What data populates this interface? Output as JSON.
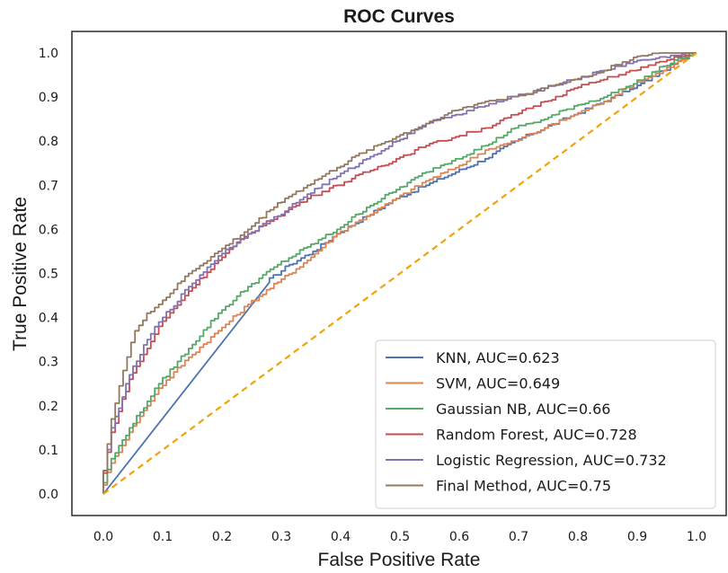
{
  "chart_data": {
    "type": "line",
    "title": "ROC Curves",
    "xlabel": "False Positive Rate",
    "ylabel": "True Positive Rate",
    "xlim": [
      0.0,
      1.0
    ],
    "ylim": [
      0.0,
      1.0
    ],
    "xticks": [
      "0.0",
      "0.1",
      "0.2",
      "0.3",
      "0.4",
      "0.5",
      "0.6",
      "0.7",
      "0.8",
      "0.9",
      "1.0"
    ],
    "yticks": [
      "0.0",
      "0.1",
      "0.2",
      "0.3",
      "0.4",
      "0.5",
      "0.6",
      "0.7",
      "0.8",
      "0.9",
      "1.0"
    ],
    "grid": false,
    "legend_position": "lower-right",
    "series": [
      {
        "name": "KNN, AUC=0.623",
        "color": "#4c72b0",
        "x": [
          0.0,
          0.28,
          0.32,
          0.36,
          0.4,
          0.45,
          0.5,
          0.55,
          0.6,
          0.65,
          0.7,
          0.75,
          0.8,
          0.85,
          0.9,
          0.95,
          1.0
        ],
        "y": [
          0.0,
          0.48,
          0.52,
          0.55,
          0.59,
          0.63,
          0.67,
          0.7,
          0.73,
          0.76,
          0.8,
          0.83,
          0.86,
          0.89,
          0.92,
          0.96,
          1.0
        ]
      },
      {
        "name": "SVM, AUC=0.649",
        "color": "#dd8452",
        "x": [
          0.0,
          0.02,
          0.05,
          0.08,
          0.1,
          0.15,
          0.2,
          0.25,
          0.3,
          0.35,
          0.4,
          0.45,
          0.5,
          0.55,
          0.6,
          0.65,
          0.7,
          0.75,
          0.8,
          0.85,
          0.9,
          0.95,
          1.0
        ],
        "y": [
          0.0,
          0.07,
          0.14,
          0.2,
          0.24,
          0.31,
          0.37,
          0.43,
          0.48,
          0.53,
          0.59,
          0.63,
          0.67,
          0.71,
          0.74,
          0.78,
          0.8,
          0.83,
          0.86,
          0.89,
          0.93,
          0.96,
          1.0
        ]
      },
      {
        "name": "Gaussian NB, AUC=0.66",
        "color": "#55a868",
        "x": [
          0.0,
          0.02,
          0.05,
          0.08,
          0.1,
          0.15,
          0.2,
          0.25,
          0.3,
          0.35,
          0.4,
          0.45,
          0.5,
          0.55,
          0.6,
          0.65,
          0.7,
          0.75,
          0.8,
          0.85,
          0.9,
          0.95,
          1.0
        ],
        "y": [
          0.0,
          0.08,
          0.15,
          0.21,
          0.25,
          0.33,
          0.41,
          0.47,
          0.52,
          0.56,
          0.6,
          0.65,
          0.69,
          0.73,
          0.76,
          0.79,
          0.83,
          0.85,
          0.88,
          0.9,
          0.93,
          0.97,
          1.0
        ]
      },
      {
        "name": "Random Forest, AUC=0.728",
        "color": "#c44e52",
        "x": [
          0.0,
          0.02,
          0.05,
          0.08,
          0.1,
          0.15,
          0.2,
          0.25,
          0.3,
          0.35,
          0.4,
          0.45,
          0.5,
          0.55,
          0.6,
          0.65,
          0.7,
          0.75,
          0.8,
          0.85,
          0.9,
          0.95,
          1.0
        ],
        "y": [
          0.0,
          0.14,
          0.26,
          0.33,
          0.38,
          0.46,
          0.53,
          0.59,
          0.63,
          0.67,
          0.7,
          0.73,
          0.76,
          0.79,
          0.81,
          0.83,
          0.86,
          0.89,
          0.92,
          0.94,
          0.96,
          0.98,
          1.0
        ]
      },
      {
        "name": "Logistic Regression, AUC=0.732",
        "color": "#8172b3",
        "x": [
          0.0,
          0.02,
          0.05,
          0.08,
          0.1,
          0.15,
          0.2,
          0.25,
          0.3,
          0.35,
          0.4,
          0.45,
          0.5,
          0.55,
          0.6,
          0.65,
          0.7,
          0.75,
          0.8,
          0.85,
          0.9,
          0.95,
          1.0
        ],
        "y": [
          0.0,
          0.15,
          0.27,
          0.35,
          0.39,
          0.47,
          0.54,
          0.59,
          0.63,
          0.68,
          0.72,
          0.76,
          0.8,
          0.84,
          0.86,
          0.88,
          0.9,
          0.92,
          0.94,
          0.96,
          0.98,
          0.99,
          1.0
        ]
      },
      {
        "name": "Final Method, AUC=0.75",
        "color": "#937860",
        "x": [
          0.0,
          0.02,
          0.04,
          0.06,
          0.08,
          0.1,
          0.15,
          0.2,
          0.25,
          0.3,
          0.35,
          0.4,
          0.45,
          0.5,
          0.55,
          0.6,
          0.65,
          0.7,
          0.75,
          0.8,
          0.85,
          0.9,
          0.95,
          1.0
        ],
        "y": [
          0.0,
          0.17,
          0.28,
          0.37,
          0.41,
          0.43,
          0.5,
          0.55,
          0.6,
          0.66,
          0.7,
          0.74,
          0.78,
          0.81,
          0.84,
          0.87,
          0.89,
          0.9,
          0.92,
          0.94,
          0.96,
          0.99,
          1.0,
          1.0
        ]
      },
      {
        "name": "",
        "color": "#f0a30a",
        "dashed": true,
        "x": [
          0.0,
          1.0
        ],
        "y": [
          0.0,
          1.0
        ]
      }
    ]
  }
}
